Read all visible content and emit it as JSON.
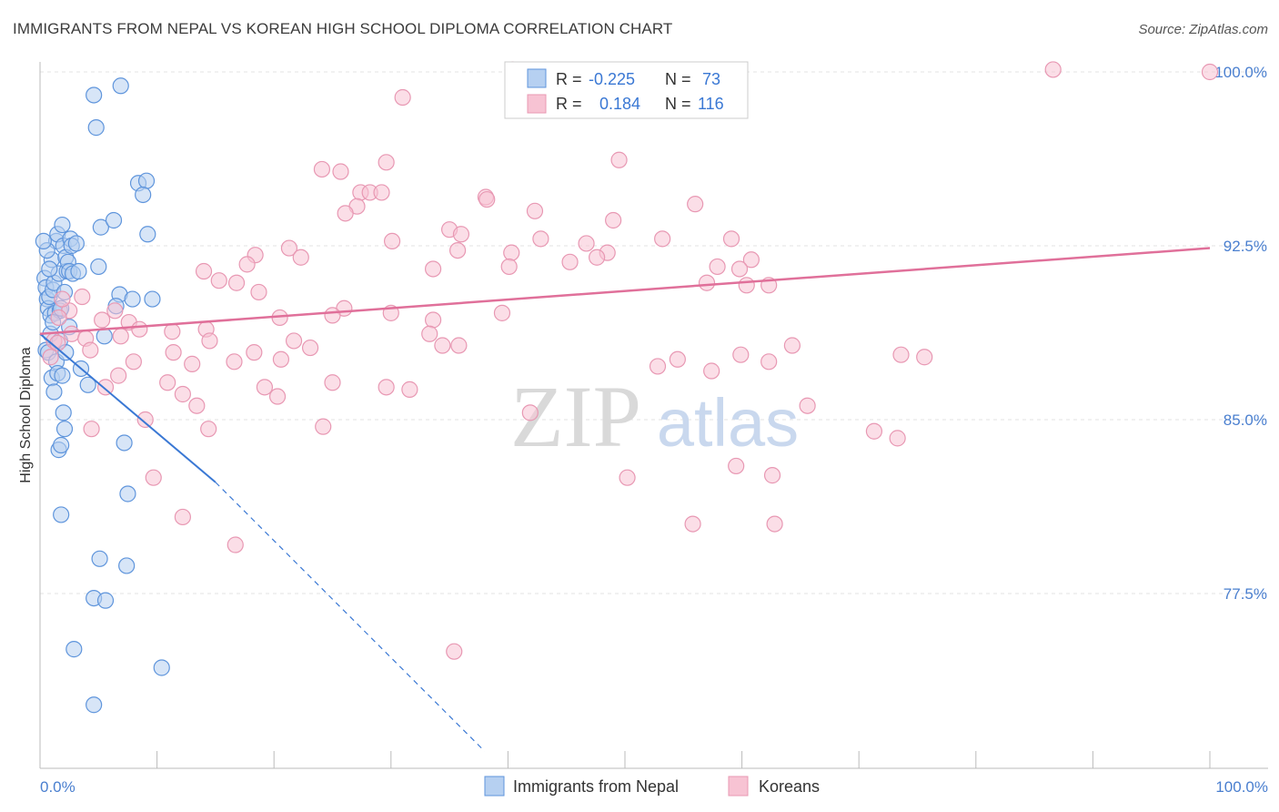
{
  "chart_data": {
    "type": "scatter",
    "title": "IMMIGRANTS FROM NEPAL VS KOREAN HIGH SCHOOL DIPLOMA CORRELATION CHART",
    "source": "Source: ZipAtlas.com",
    "xlabel": "",
    "ylabel": "High School Diploma",
    "xlim": [
      0,
      100
    ],
    "ylim": [
      70.7,
      101.2
    ],
    "x_tick_labels": [
      "0.0%",
      "100.0%"
    ],
    "y_ticks": [
      77.5,
      85.0,
      92.5,
      100.0
    ],
    "y_tick_labels": [
      "77.5%",
      "85.0%",
      "92.5%",
      "100.0%"
    ],
    "watermark": {
      "zip": "ZIP",
      "atlas": "atlas"
    },
    "legend": {
      "r_label": "R =",
      "n_label": "N =",
      "entries": [
        {
          "r": "-0.225",
          "n": "73"
        },
        {
          "r": "0.184",
          "n": "116"
        }
      ]
    },
    "colors": {
      "nepal_fill": "#b6d0f1",
      "nepal_stroke": "#5f95dc",
      "nepal_line": "#3a78d4",
      "korean_fill": "#f7c3d3",
      "korean_stroke": "#e898b3",
      "korean_line": "#e0709a",
      "tick_label": "#4a7fcf"
    },
    "series": [
      {
        "name": "Immigrants from Nepal",
        "trend": {
          "x": [
            0,
            15
          ],
          "y": [
            88.7,
            82.3
          ]
        },
        "trend_extension": {
          "x": [
            15,
            38
          ],
          "y": [
            82.3,
            70.7
          ]
        },
        "points": [
          [
            0.4,
            91.1
          ],
          [
            0.5,
            90.7
          ],
          [
            0.6,
            90.2
          ],
          [
            0.7,
            89.8
          ],
          [
            0.8,
            90.3
          ],
          [
            0.9,
            89.5
          ],
          [
            1.0,
            91.9
          ],
          [
            1.1,
            90.6
          ],
          [
            1.2,
            90.9
          ],
          [
            1.3,
            89.6
          ],
          [
            1.4,
            92.7
          ],
          [
            1.5,
            93.0
          ],
          [
            1.6,
            91.3
          ],
          [
            1.7,
            89.7
          ],
          [
            1.8,
            89.8
          ],
          [
            1.9,
            93.4
          ],
          [
            2.0,
            92.5
          ],
          [
            2.1,
            90.5
          ],
          [
            2.2,
            92.0
          ],
          [
            2.3,
            91.4
          ],
          [
            2.4,
            91.8
          ],
          [
            2.5,
            91.4
          ],
          [
            2.6,
            92.8
          ],
          [
            2.7,
            92.5
          ],
          [
            2.8,
            91.3
          ],
          [
            3.1,
            92.6
          ],
          [
            0.5,
            88.0
          ],
          [
            0.7,
            87.9
          ],
          [
            0.9,
            88.7
          ],
          [
            1.0,
            86.8
          ],
          [
            1.2,
            86.2
          ],
          [
            1.4,
            87.5
          ],
          [
            1.5,
            87.0
          ],
          [
            1.7,
            88.4
          ],
          [
            1.9,
            86.9
          ],
          [
            2.0,
            85.3
          ],
          [
            2.1,
            84.6
          ],
          [
            2.2,
            87.9
          ],
          [
            1.6,
            83.7
          ],
          [
            1.8,
            83.9
          ],
          [
            2.5,
            89.0
          ],
          [
            3.5,
            87.2
          ],
          [
            4.1,
            86.5
          ],
          [
            5.5,
            88.6
          ],
          [
            6.8,
            90.4
          ],
          [
            7.2,
            84.0
          ],
          [
            7.5,
            81.8
          ],
          [
            5.2,
            93.3
          ],
          [
            4.8,
            97.6
          ],
          [
            6.3,
            93.6
          ],
          [
            4.6,
            99.0
          ],
          [
            6.9,
            99.4
          ],
          [
            8.4,
            95.2
          ],
          [
            9.1,
            95.3
          ],
          [
            8.8,
            94.7
          ],
          [
            7.9,
            90.2
          ],
          [
            9.6,
            90.2
          ],
          [
            1.8,
            80.9
          ],
          [
            5.1,
            79.0
          ],
          [
            7.4,
            78.7
          ],
          [
            4.6,
            77.3
          ],
          [
            5.6,
            77.2
          ],
          [
            2.9,
            75.1
          ],
          [
            10.4,
            74.3
          ],
          [
            4.6,
            72.7
          ],
          [
            0.8,
            91.5
          ],
          [
            0.6,
            92.3
          ],
          [
            1.1,
            89.2
          ],
          [
            3.3,
            91.4
          ],
          [
            5.0,
            91.6
          ],
          [
            9.2,
            93.0
          ],
          [
            6.5,
            89.9
          ],
          [
            0.3,
            92.7
          ]
        ]
      },
      {
        "name": "Koreans",
        "trend": {
          "x": [
            0,
            100
          ],
          "y": [
            88.7,
            92.4
          ]
        },
        "points": [
          [
            40.4,
            100.1
          ],
          [
            86.6,
            100.1
          ],
          [
            100.0,
            100.0
          ],
          [
            31.0,
            98.9
          ],
          [
            24.1,
            95.8
          ],
          [
            25.7,
            95.7
          ],
          [
            29.6,
            96.1
          ],
          [
            49.5,
            96.2
          ],
          [
            27.4,
            94.8
          ],
          [
            28.2,
            94.8
          ],
          [
            29.2,
            94.8
          ],
          [
            42.3,
            94.0
          ],
          [
            38.1,
            94.6
          ],
          [
            27.1,
            94.2
          ],
          [
            38.2,
            94.5
          ],
          [
            56.0,
            94.3
          ],
          [
            26.1,
            93.9
          ],
          [
            35.0,
            93.2
          ],
          [
            49.0,
            93.6
          ],
          [
            36.0,
            93.0
          ],
          [
            42.8,
            92.8
          ],
          [
            40.3,
            92.2
          ],
          [
            21.3,
            92.4
          ],
          [
            18.4,
            92.1
          ],
          [
            22.3,
            92.0
          ],
          [
            17.7,
            91.7
          ],
          [
            30.1,
            92.7
          ],
          [
            46.7,
            92.6
          ],
          [
            53.2,
            92.8
          ],
          [
            59.1,
            92.8
          ],
          [
            35.7,
            92.3
          ],
          [
            48.5,
            92.2
          ],
          [
            45.3,
            91.8
          ],
          [
            14.0,
            91.4
          ],
          [
            33.6,
            91.5
          ],
          [
            47.6,
            92.0
          ],
          [
            40.1,
            91.6
          ],
          [
            57.9,
            91.6
          ],
          [
            60.8,
            91.9
          ],
          [
            59.8,
            91.5
          ],
          [
            60.4,
            90.8
          ],
          [
            62.3,
            90.8
          ],
          [
            57.0,
            90.9
          ],
          [
            16.8,
            90.9
          ],
          [
            15.3,
            91.0
          ],
          [
            18.7,
            90.5
          ],
          [
            26.0,
            89.8
          ],
          [
            30.0,
            89.6
          ],
          [
            39.5,
            89.6
          ],
          [
            20.5,
            89.4
          ],
          [
            33.6,
            89.3
          ],
          [
            25.0,
            89.5
          ],
          [
            14.2,
            88.9
          ],
          [
            11.3,
            88.8
          ],
          [
            7.6,
            89.2
          ],
          [
            6.4,
            89.7
          ],
          [
            5.3,
            89.3
          ],
          [
            3.6,
            90.3
          ],
          [
            2.5,
            89.7
          ],
          [
            1.9,
            90.2
          ],
          [
            1.6,
            89.4
          ],
          [
            1.2,
            88.4
          ],
          [
            0.9,
            87.7
          ],
          [
            1.5,
            88.3
          ],
          [
            2.7,
            88.7
          ],
          [
            3.9,
            88.5
          ],
          [
            4.3,
            88.0
          ],
          [
            6.9,
            88.6
          ],
          [
            8.5,
            88.9
          ],
          [
            14.5,
            88.4
          ],
          [
            18.3,
            87.9
          ],
          [
            21.7,
            88.4
          ],
          [
            23.1,
            88.1
          ],
          [
            33.3,
            88.7
          ],
          [
            34.4,
            88.2
          ],
          [
            35.8,
            88.2
          ],
          [
            64.3,
            88.2
          ],
          [
            11.4,
            87.9
          ],
          [
            13.0,
            87.4
          ],
          [
            16.6,
            87.5
          ],
          [
            20.6,
            87.6
          ],
          [
            62.3,
            87.5
          ],
          [
            73.6,
            87.8
          ],
          [
            75.6,
            87.7
          ],
          [
            8.0,
            87.5
          ],
          [
            5.6,
            86.4
          ],
          [
            6.7,
            86.9
          ],
          [
            10.9,
            86.6
          ],
          [
            12.2,
            86.1
          ],
          [
            13.4,
            85.6
          ],
          [
            9.0,
            85.0
          ],
          [
            14.4,
            84.6
          ],
          [
            19.2,
            86.4
          ],
          [
            20.3,
            86.0
          ],
          [
            25.0,
            86.6
          ],
          [
            29.6,
            86.4
          ],
          [
            31.6,
            86.3
          ],
          [
            41.9,
            85.3
          ],
          [
            52.8,
            87.3
          ],
          [
            54.5,
            87.6
          ],
          [
            57.4,
            87.1
          ],
          [
            59.9,
            87.8
          ],
          [
            65.6,
            85.6
          ],
          [
            71.3,
            84.5
          ],
          [
            4.4,
            84.6
          ],
          [
            24.2,
            84.7
          ],
          [
            59.5,
            83.0
          ],
          [
            62.6,
            82.6
          ],
          [
            50.2,
            82.5
          ],
          [
            9.7,
            82.5
          ],
          [
            12.2,
            80.8
          ],
          [
            16.7,
            79.6
          ],
          [
            55.8,
            80.5
          ],
          [
            62.8,
            80.5
          ],
          [
            35.4,
            75.0
          ],
          [
            73.3,
            84.2
          ]
        ]
      }
    ],
    "bottom_legend": [
      "Immigrants from Nepal",
      "Koreans"
    ]
  }
}
